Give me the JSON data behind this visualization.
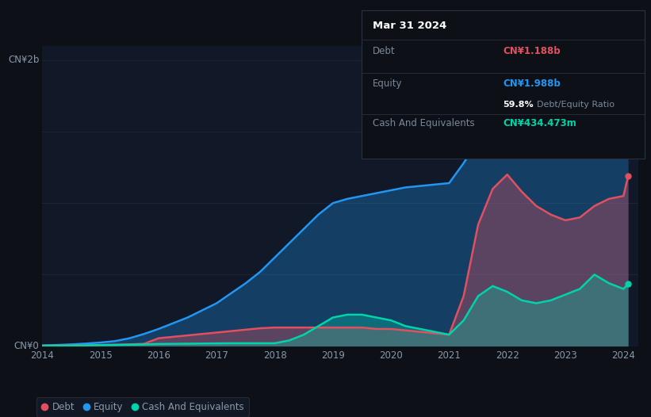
{
  "background_color": "#0d1117",
  "plot_bg_color": "#111827",
  "title": "Mar 31 2024",
  "ylabel_2b": "CN¥2b",
  "ylabel_0": "CN¥0",
  "debt_color": "#e05060",
  "equity_color": "#2196f3",
  "cash_color": "#00d4aa",
  "grid_color": "#1e2535",
  "text_color": "#8899aa",
  "years": [
    2014.0,
    2014.25,
    2014.5,
    2014.75,
    2015.0,
    2015.25,
    2015.5,
    2015.75,
    2016.0,
    2016.25,
    2016.5,
    2016.75,
    2017.0,
    2017.25,
    2017.5,
    2017.75,
    2018.0,
    2018.25,
    2018.5,
    2018.75,
    2019.0,
    2019.25,
    2019.5,
    2019.75,
    2020.0,
    2020.25,
    2020.5,
    2020.75,
    2021.0,
    2021.25,
    2021.5,
    2021.75,
    2022.0,
    2022.25,
    2022.5,
    2022.75,
    2023.0,
    2023.25,
    2023.5,
    2023.75,
    2024.0,
    2024.08
  ],
  "equity": [
    0.005,
    0.008,
    0.012,
    0.018,
    0.025,
    0.035,
    0.055,
    0.085,
    0.12,
    0.16,
    0.2,
    0.25,
    0.3,
    0.37,
    0.44,
    0.52,
    0.62,
    0.72,
    0.82,
    0.92,
    1.0,
    1.03,
    1.05,
    1.07,
    1.09,
    1.11,
    1.12,
    1.13,
    1.14,
    1.28,
    1.44,
    1.55,
    1.62,
    1.64,
    1.65,
    1.66,
    1.68,
    1.72,
    1.74,
    1.76,
    1.8,
    1.988
  ],
  "debt": [
    0.003,
    0.004,
    0.005,
    0.006,
    0.008,
    0.01,
    0.012,
    0.016,
    0.055,
    0.065,
    0.075,
    0.085,
    0.095,
    0.105,
    0.115,
    0.125,
    0.13,
    0.13,
    0.13,
    0.13,
    0.13,
    0.13,
    0.13,
    0.12,
    0.12,
    0.11,
    0.1,
    0.09,
    0.08,
    0.35,
    0.85,
    1.1,
    1.2,
    1.08,
    0.98,
    0.92,
    0.88,
    0.9,
    0.98,
    1.03,
    1.05,
    1.188
  ],
  "cash": [
    0.002,
    0.003,
    0.004,
    0.005,
    0.007,
    0.008,
    0.01,
    0.012,
    0.015,
    0.016,
    0.017,
    0.018,
    0.019,
    0.02,
    0.02,
    0.02,
    0.02,
    0.04,
    0.08,
    0.14,
    0.2,
    0.22,
    0.22,
    0.2,
    0.18,
    0.14,
    0.12,
    0.1,
    0.08,
    0.18,
    0.35,
    0.42,
    0.38,
    0.32,
    0.3,
    0.32,
    0.36,
    0.4,
    0.5,
    0.44,
    0.4,
    0.434
  ],
  "xlim": [
    2014.0,
    2024.25
  ],
  "ylim": [
    0,
    2.1
  ],
  "xticks": [
    2014,
    2015,
    2016,
    2017,
    2018,
    2019,
    2020,
    2021,
    2022,
    2023,
    2024
  ],
  "grid_yvals": [
    0.5,
    1.0,
    1.5,
    2.0
  ],
  "legend_items": [
    "Debt",
    "Equity",
    "Cash And Equivalents"
  ],
  "tooltip_title": "Mar 31 2024",
  "debt_label": "Debt",
  "equity_label": "Equity",
  "cash_label": "Cash And Equivalents",
  "debt_value": "CN¥1.188b",
  "equity_value": "CN¥1.988b",
  "de_ratio": "59.8%",
  "de_ratio_text": "Debt/Equity Ratio",
  "cash_value": "CN¥434.473m",
  "tooltip_bg": "#0d1117",
  "tooltip_border": "#2a3040",
  "tooltip_text_dim": "#7a8899"
}
